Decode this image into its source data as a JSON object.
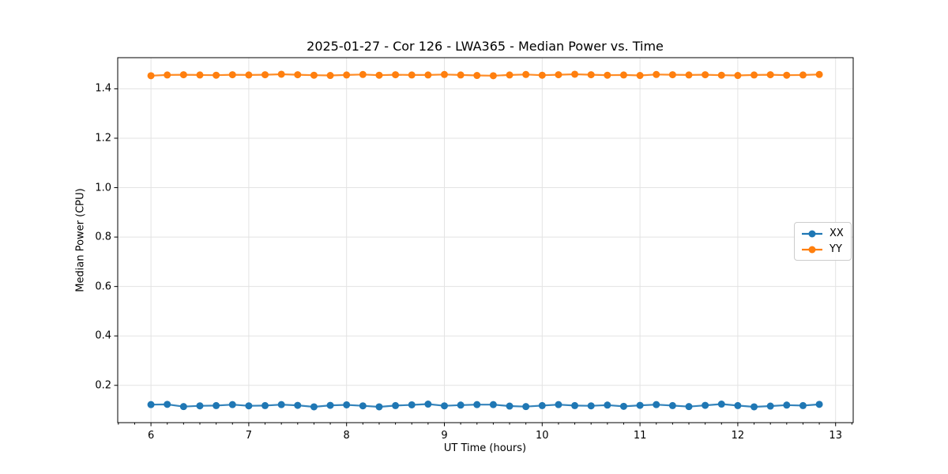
{
  "chart_data": {
    "type": "line",
    "title": "2025-01-27 - Cor 126 - LWA365 - Median Power vs. Time",
    "xlabel": "UT Time (hours)",
    "ylabel": "Median Power (CPU)",
    "xlim": [
      5.66,
      13.18
    ],
    "ylim": [
      0.049,
      1.526
    ],
    "grid": true,
    "grid_color": "#e3e3e3",
    "spine_color": "#000000",
    "legend_position": "center right",
    "x_ticks": [
      6,
      7,
      8,
      9,
      10,
      11,
      12,
      13
    ],
    "x_tick_labels": [
      "6",
      "7",
      "8",
      "9",
      "10",
      "11",
      "12",
      "13"
    ],
    "x_minor_step": 0.166667,
    "y_ticks": [
      0.2,
      0.4,
      0.6,
      0.8,
      1.0,
      1.2,
      1.4
    ],
    "y_tick_labels": [
      "0.2",
      "0.4",
      "0.6",
      "0.8",
      "1.0",
      "1.2",
      "1.4"
    ],
    "x": [
      6.0,
      6.1667,
      6.3333,
      6.5,
      6.6667,
      6.8333,
      7.0,
      7.1667,
      7.3333,
      7.5,
      7.6667,
      7.8333,
      8.0,
      8.1667,
      8.3333,
      8.5,
      8.6667,
      8.8333,
      9.0,
      9.1667,
      9.3333,
      9.5,
      9.6667,
      9.8333,
      10.0,
      10.1667,
      10.3333,
      10.5,
      10.6667,
      10.8333,
      11.0,
      11.1667,
      11.3333,
      11.5,
      11.6667,
      11.8333,
      12.0,
      12.1667,
      12.3333,
      12.5,
      12.6667,
      12.8333
    ],
    "series": [
      {
        "name": "XX",
        "color": "#1f77b4",
        "values": [
          0.122,
          0.123,
          0.114,
          0.117,
          0.118,
          0.122,
          0.117,
          0.118,
          0.122,
          0.119,
          0.113,
          0.119,
          0.121,
          0.117,
          0.113,
          0.118,
          0.121,
          0.124,
          0.117,
          0.12,
          0.122,
          0.122,
          0.116,
          0.114,
          0.118,
          0.122,
          0.118,
          0.117,
          0.12,
          0.115,
          0.119,
          0.122,
          0.118,
          0.114,
          0.119,
          0.124,
          0.118,
          0.113,
          0.116,
          0.12,
          0.118,
          0.123
        ]
      },
      {
        "name": "YY",
        "color": "#ff7f0e",
        "values": [
          1.453,
          1.456,
          1.457,
          1.456,
          1.455,
          1.457,
          1.456,
          1.457,
          1.459,
          1.457,
          1.455,
          1.454,
          1.456,
          1.458,
          1.455,
          1.457,
          1.456,
          1.456,
          1.458,
          1.456,
          1.454,
          1.453,
          1.456,
          1.458,
          1.455,
          1.457,
          1.459,
          1.457,
          1.455,
          1.456,
          1.454,
          1.458,
          1.457,
          1.456,
          1.457,
          1.455,
          1.454,
          1.456,
          1.457,
          1.455,
          1.456,
          1.458
        ]
      }
    ]
  }
}
